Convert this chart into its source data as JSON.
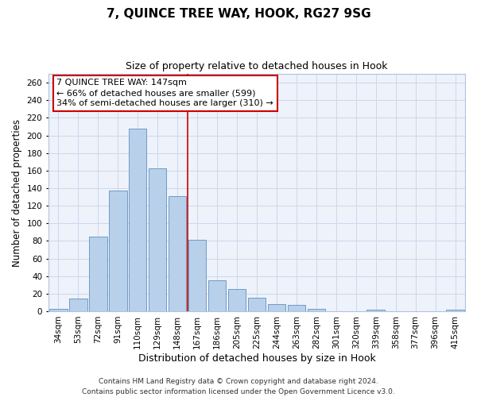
{
  "title": "7, QUINCE TREE WAY, HOOK, RG27 9SG",
  "subtitle": "Size of property relative to detached houses in Hook",
  "xlabel": "Distribution of detached houses by size in Hook",
  "ylabel": "Number of detached properties",
  "bar_labels": [
    "34sqm",
    "53sqm",
    "72sqm",
    "91sqm",
    "110sqm",
    "129sqm",
    "148sqm",
    "167sqm",
    "186sqm",
    "205sqm",
    "225sqm",
    "244sqm",
    "263sqm",
    "282sqm",
    "301sqm",
    "320sqm",
    "339sqm",
    "358sqm",
    "377sqm",
    "396sqm",
    "415sqm"
  ],
  "bar_values": [
    3,
    14,
    85,
    137,
    208,
    163,
    131,
    81,
    35,
    25,
    15,
    8,
    7,
    3,
    0,
    0,
    2,
    0,
    0,
    0,
    2
  ],
  "bar_color": "#b8d0ea",
  "bar_edge_color": "#6090c0",
  "background_color": "#eef2fa",
  "grid_color": "#ccd8ec",
  "vline_x": 6.5,
  "vline_color": "#cc0000",
  "annotation_text": "7 QUINCE TREE WAY: 147sqm\n← 66% of detached houses are smaller (599)\n34% of semi-detached houses are larger (310) →",
  "annotation_box_color": "#ffffff",
  "annotation_box_edge": "#cc0000",
  "ylim": [
    0,
    270
  ],
  "yticks": [
    0,
    20,
    40,
    60,
    80,
    100,
    120,
    140,
    160,
    180,
    200,
    220,
    240,
    260
  ],
  "footer_line1": "Contains HM Land Registry data © Crown copyright and database right 2024.",
  "footer_line2": "Contains public sector information licensed under the Open Government Licence v3.0.",
  "title_fontsize": 11,
  "subtitle_fontsize": 9,
  "xlabel_fontsize": 9,
  "ylabel_fontsize": 8.5,
  "tick_fontsize": 7.5,
  "annotation_fontsize": 8,
  "footer_fontsize": 6.5
}
